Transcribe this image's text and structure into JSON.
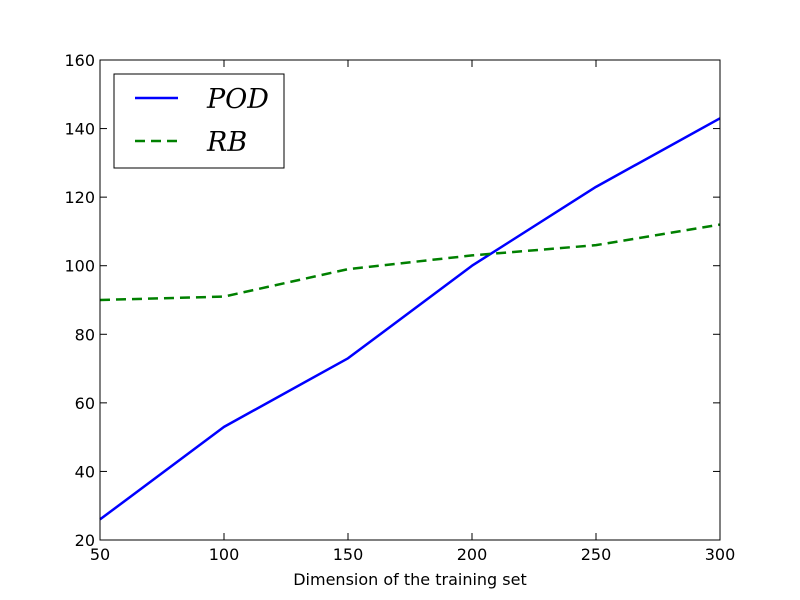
{
  "chart_data": {
    "type": "line",
    "title": "",
    "xlabel": "Dimension of the training set",
    "ylabel": "",
    "xlim": [
      50,
      300
    ],
    "ylim": [
      20,
      160
    ],
    "x_ticks": [
      50,
      100,
      150,
      200,
      250,
      300
    ],
    "y_ticks": [
      20,
      40,
      60,
      80,
      100,
      120,
      140,
      160
    ],
    "grid": false,
    "legend_position": "top-left",
    "x": [
      50,
      100,
      150,
      200,
      250,
      300
    ],
    "series": [
      {
        "name": "POD",
        "values": [
          26,
          53,
          73,
          100,
          123,
          143
        ],
        "color": "#0000ff",
        "line_style": "solid"
      },
      {
        "name": "RB",
        "values": [
          90,
          91,
          99,
          103,
          106,
          112
        ],
        "color": "#008000",
        "line_style": "dashed"
      }
    ]
  }
}
